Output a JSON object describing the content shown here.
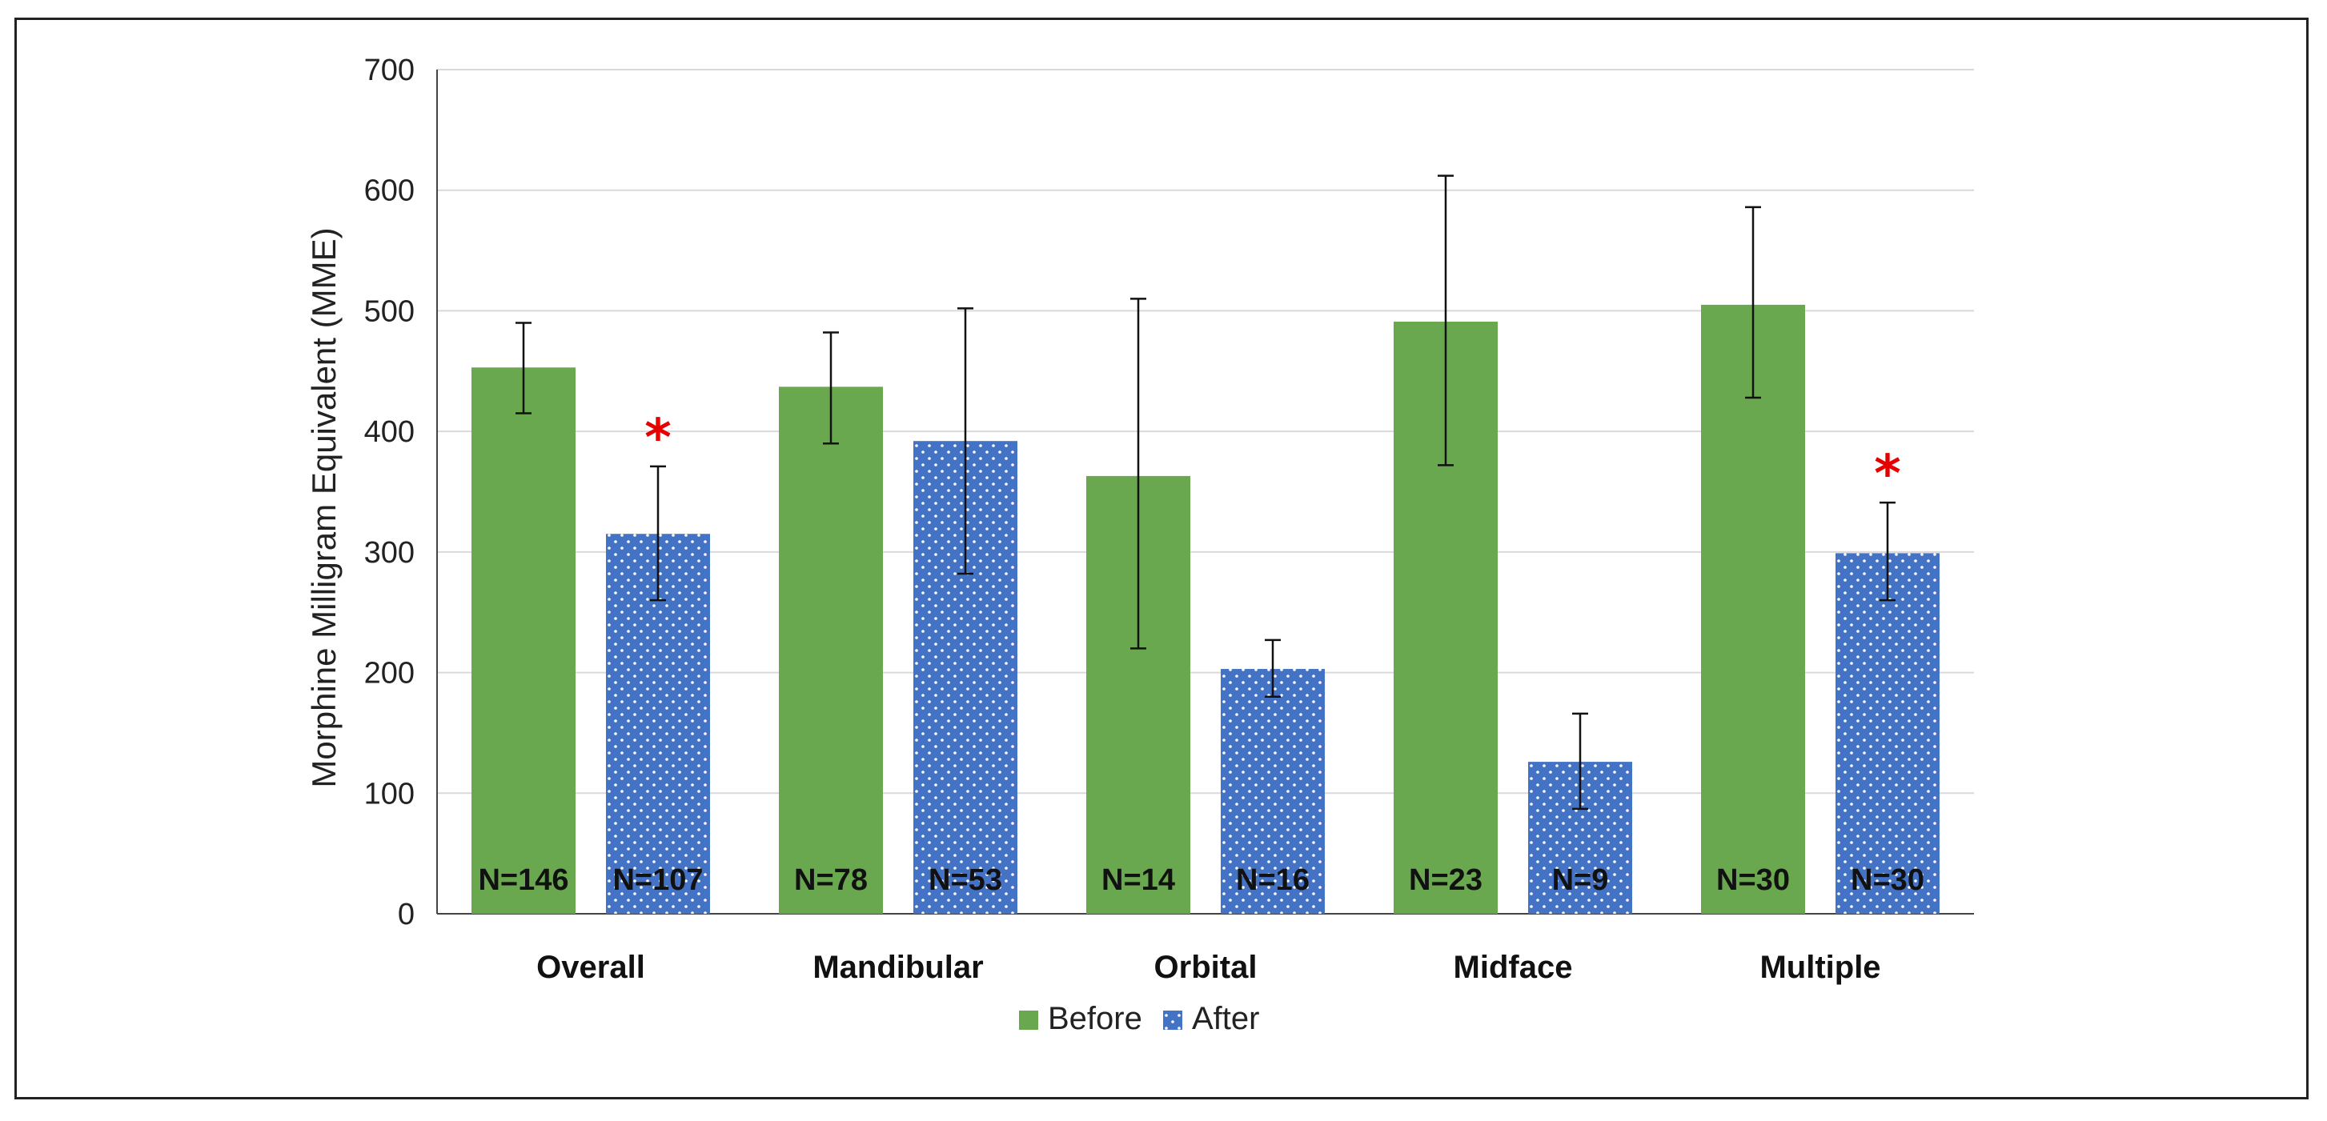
{
  "chart_data": {
    "type": "bar",
    "title": "",
    "xlabel": "",
    "ylabel": "Morphine Milligram Equivalent (MME)",
    "ylim": [
      0,
      700
    ],
    "yticks": [
      0,
      100,
      200,
      300,
      400,
      500,
      600,
      700
    ],
    "grid": true,
    "legend_position": "bottom-center",
    "categories": [
      "Overall",
      "Mandibular",
      "Orbital",
      "Midface",
      "Multiple"
    ],
    "series": [
      {
        "name": "Before",
        "color": "#6aa84f",
        "pattern": "solid",
        "values": [
          453,
          437,
          363,
          491,
          505
        ],
        "err_low": [
          415,
          390,
          220,
          372,
          428
        ],
        "err_high": [
          490,
          482,
          510,
          612,
          586
        ],
        "n_labels": [
          "N=146",
          "N=78",
          "N=14",
          "N=23",
          "N=30"
        ],
        "significance": [
          "",
          "",
          "",
          "",
          ""
        ]
      },
      {
        "name": "After",
        "color": "#4472c4",
        "pattern": "dotted",
        "values": [
          315,
          392,
          203,
          126,
          299
        ],
        "err_low": [
          260,
          282,
          180,
          87,
          260
        ],
        "err_high": [
          371,
          502,
          227,
          166,
          341
        ],
        "n_labels": [
          "N=107",
          "N=53",
          "N=16",
          "N=9",
          "N=30"
        ],
        "significance": [
          "*",
          "",
          "",
          "",
          "*"
        ]
      }
    ]
  }
}
